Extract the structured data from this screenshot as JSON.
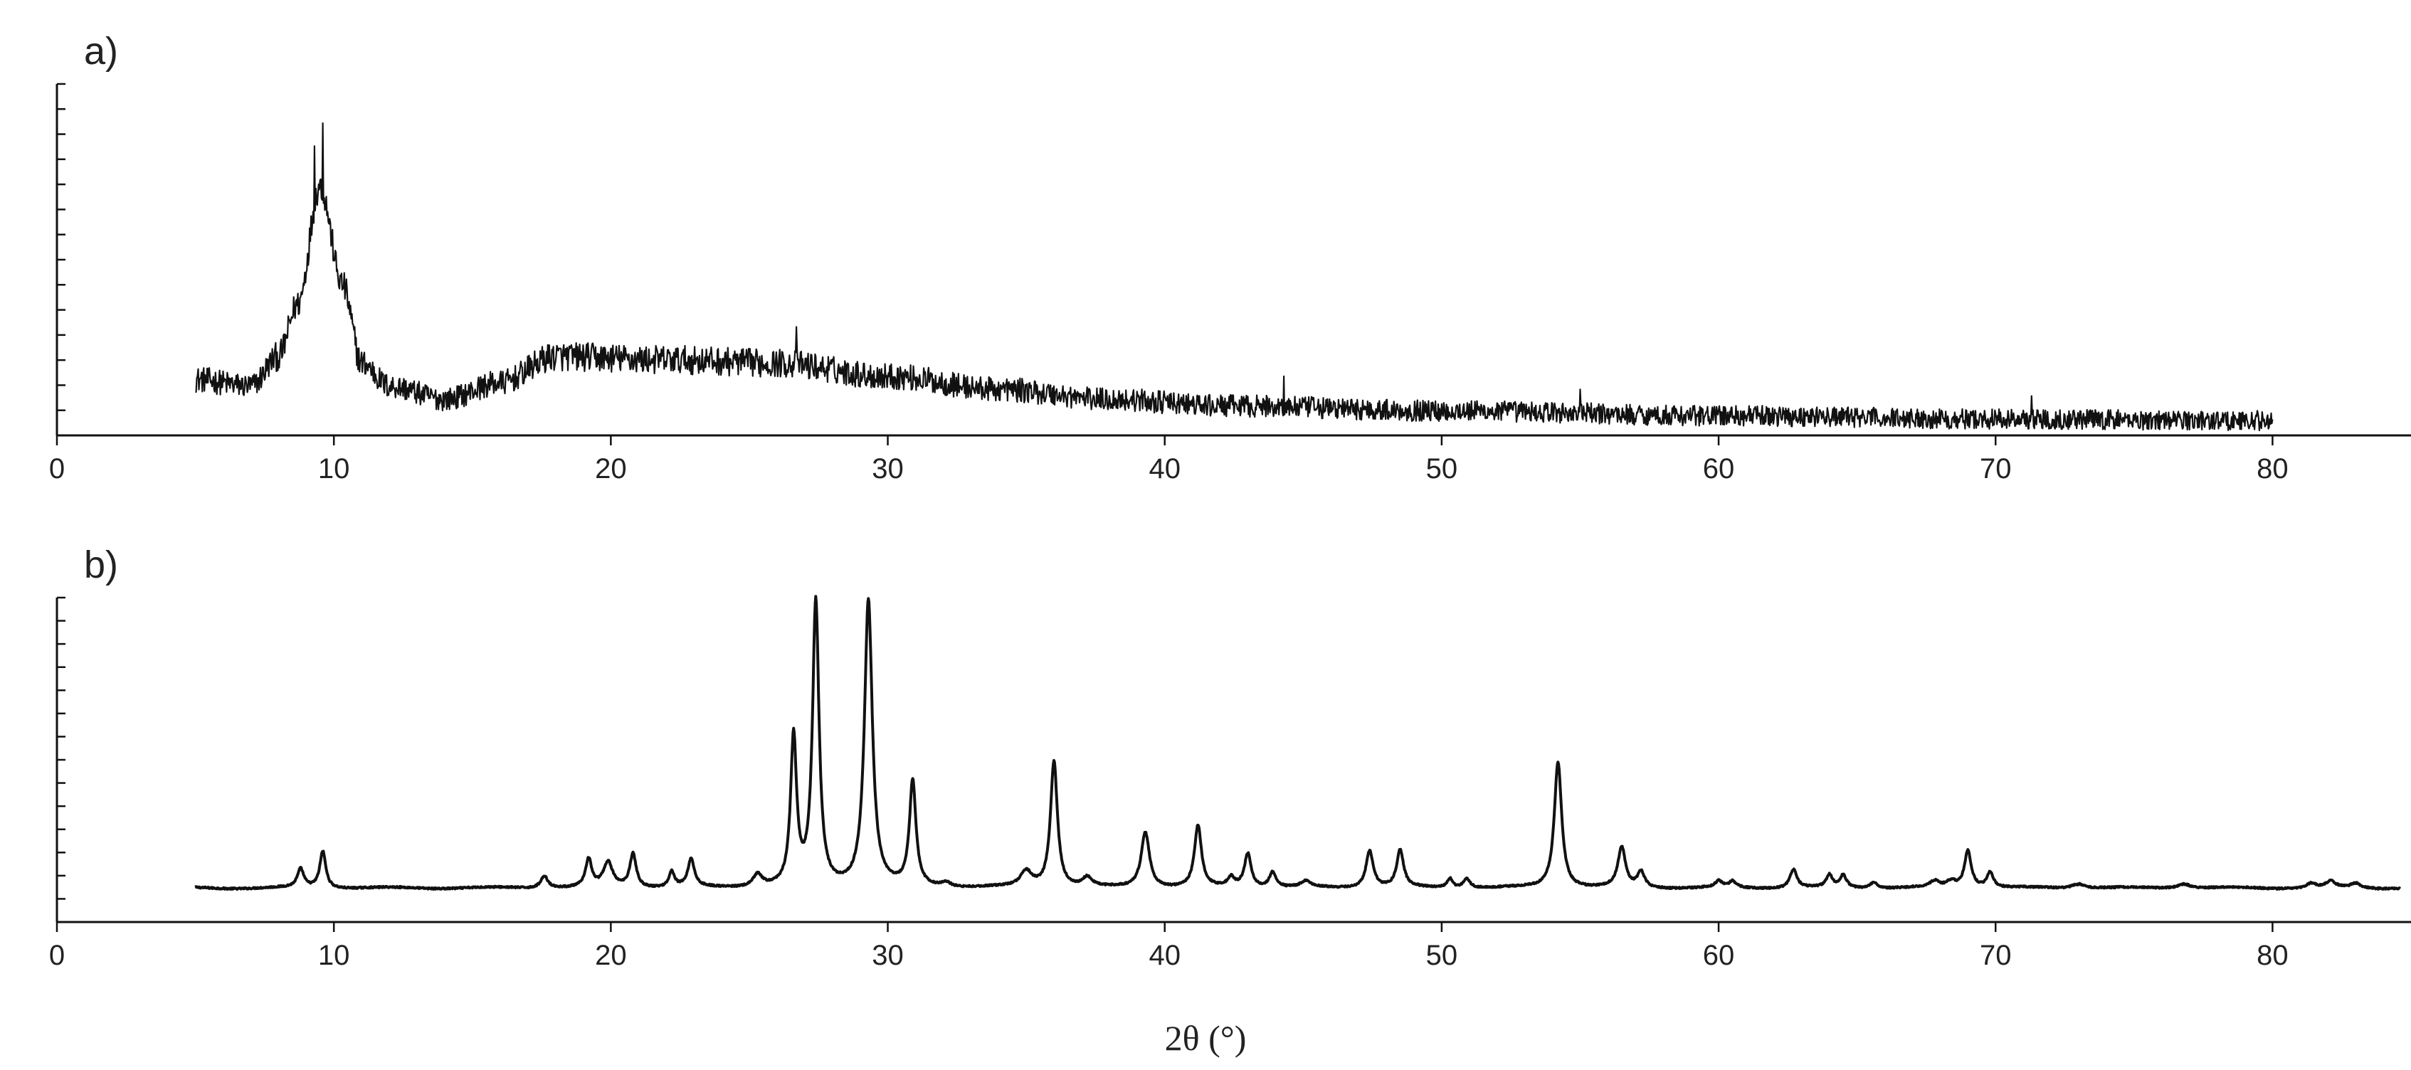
{
  "chart_data": [
    {
      "type": "line",
      "panel_label": "a)",
      "xlim": [
        0,
        85
      ],
      "x_ticks": [
        0,
        10,
        20,
        30,
        40,
        50,
        60,
        70,
        80
      ],
      "x_tick_labels": [
        "0",
        "10",
        "20",
        "30",
        "40",
        "50",
        "60",
        "70",
        "80"
      ],
      "ylim": [
        0,
        100
      ],
      "y_tick_labels": [],
      "x_range": [
        5,
        80
      ],
      "noise_amplitude": 4.5,
      "baseline": [
        [
          5,
          17
        ],
        [
          7,
          15
        ],
        [
          8,
          24
        ],
        [
          8.7,
          40
        ],
        [
          9.5,
          76
        ],
        [
          10.3,
          46
        ],
        [
          11,
          22
        ],
        [
          12,
          15
        ],
        [
          14,
          11
        ],
        [
          16,
          16
        ],
        [
          18,
          24
        ],
        [
          22,
          23
        ],
        [
          26,
          22
        ],
        [
          30,
          18
        ],
        [
          34,
          14
        ],
        [
          38,
          11
        ],
        [
          42,
          9
        ],
        [
          50,
          7.5
        ],
        [
          60,
          6
        ],
        [
          70,
          5
        ],
        [
          80,
          4.5
        ]
      ],
      "spikes": [
        [
          9.6,
          95
        ],
        [
          9.3,
          88
        ],
        [
          26.7,
          33
        ],
        [
          44.3,
          18
        ],
        [
          55,
          14
        ],
        [
          71.3,
          12
        ]
      ],
      "grid": false,
      "color": "#111111"
    },
    {
      "type": "line",
      "panel_label": "b)",
      "xlim": [
        0,
        85
      ],
      "x_ticks": [
        0,
        10,
        20,
        30,
        40,
        50,
        60,
        70,
        80
      ],
      "x_tick_labels": [
        "0",
        "10",
        "20",
        "30",
        "40",
        "50",
        "60",
        "70",
        "80"
      ],
      "ylim": [
        0,
        100
      ],
      "y_tick_labels": [],
      "x_range": [
        5,
        84.6
      ],
      "baseline_level": 11,
      "peaks": [
        [
          8.8,
          6,
          0.14
        ],
        [
          9.6,
          12,
          0.13
        ],
        [
          17.6,
          4,
          0.16
        ],
        [
          19.2,
          9,
          0.13
        ],
        [
          19.9,
          8,
          0.2
        ],
        [
          20.8,
          11,
          0.14
        ],
        [
          22.2,
          5,
          0.12
        ],
        [
          22.9,
          9,
          0.14
        ],
        [
          25.3,
          4,
          0.2
        ],
        [
          26.6,
          48,
          0.13
        ],
        [
          27.4,
          92,
          0.14
        ],
        [
          29.3,
          93,
          0.17
        ],
        [
          30.9,
          34,
          0.14
        ],
        [
          32.1,
          1.5,
          0.2
        ],
        [
          35.0,
          5,
          0.25
        ],
        [
          36.0,
          41,
          0.15
        ],
        [
          37.2,
          3,
          0.2
        ],
        [
          39.3,
          18,
          0.18
        ],
        [
          41.2,
          20,
          0.15
        ],
        [
          42.4,
          3,
          0.15
        ],
        [
          43.0,
          11,
          0.15
        ],
        [
          43.9,
          5,
          0.15
        ],
        [
          45.1,
          2,
          0.2
        ],
        [
          47.4,
          12,
          0.16
        ],
        [
          48.5,
          12,
          0.15
        ],
        [
          50.3,
          3,
          0.12
        ],
        [
          50.9,
          3,
          0.15
        ],
        [
          54.2,
          41,
          0.16
        ],
        [
          56.5,
          13,
          0.16
        ],
        [
          57.2,
          5,
          0.15
        ],
        [
          60.0,
          2,
          0.15
        ],
        [
          60.5,
          2,
          0.15
        ],
        [
          62.7,
          6,
          0.15
        ],
        [
          64.0,
          4,
          0.13
        ],
        [
          64.5,
          4,
          0.14
        ],
        [
          65.6,
          2,
          0.15
        ],
        [
          67.8,
          2,
          0.2
        ],
        [
          68.4,
          2,
          0.2
        ],
        [
          69.0,
          12,
          0.15
        ],
        [
          69.8,
          5,
          0.15
        ],
        [
          73.0,
          1.5,
          0.3
        ],
        [
          76.8,
          1.5,
          0.3
        ],
        [
          81.4,
          1.5,
          0.2
        ],
        [
          82.1,
          2,
          0.2
        ],
        [
          83.0,
          1.5,
          0.2
        ]
      ],
      "grid": false,
      "color": "#111111"
    }
  ],
  "xlabel": "2θ (°)"
}
